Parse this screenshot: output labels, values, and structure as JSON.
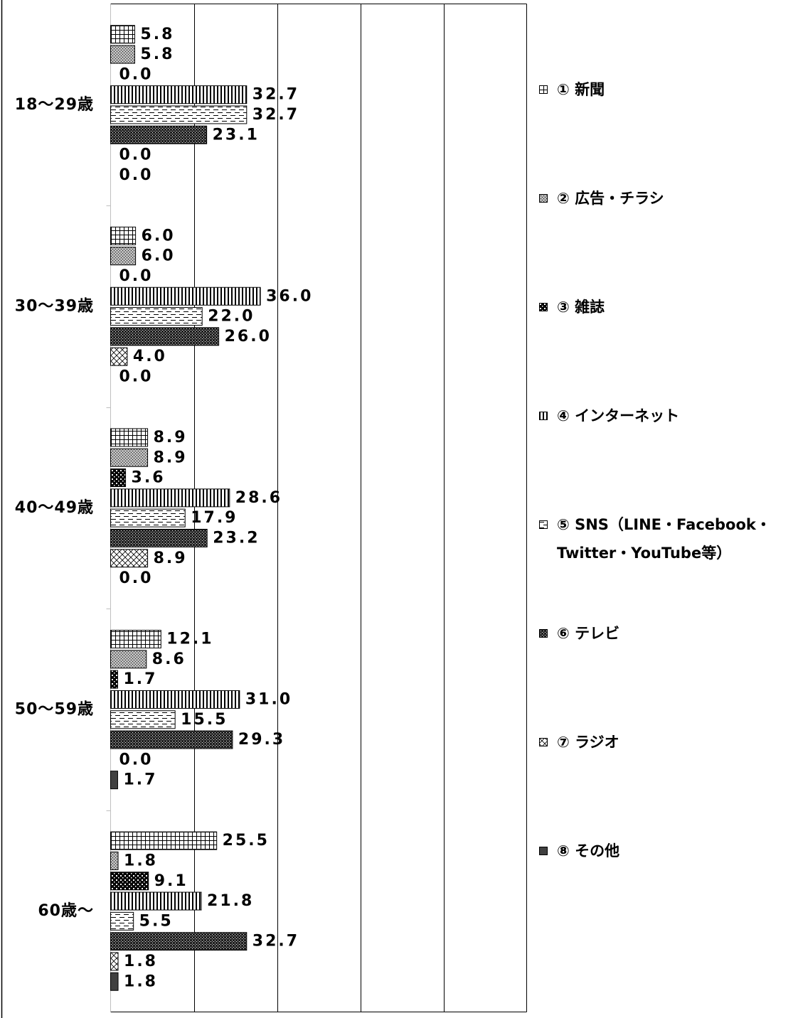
{
  "chart_data": {
    "type": "bar",
    "orientation": "horizontal",
    "categories": [
      "18～29歳",
      "30～39歳",
      "40～49歳",
      "50～59歳",
      "60歳～"
    ],
    "series": [
      {
        "name": "① 新聞",
        "values": [
          5.8,
          6.0,
          8.9,
          12.1,
          25.5
        ],
        "pattern": "small-grid"
      },
      {
        "name": "② 広告・チラシ",
        "values": [
          5.8,
          6.0,
          8.9,
          8.6,
          1.8
        ],
        "pattern": "gray-stipple"
      },
      {
        "name": "③ 雑誌",
        "values": [
          0.0,
          0.0,
          3.6,
          1.7,
          9.1
        ],
        "pattern": "black-with-white-dots"
      },
      {
        "name": "④ インターネット",
        "values": [
          32.7,
          36.0,
          28.6,
          31.0,
          21.8
        ],
        "pattern": "vertical-stripes"
      },
      {
        "name": "⑤ SNS（LINE・Facebook・Twitter・YouTube等）",
        "values": [
          32.7,
          22.0,
          17.9,
          15.5,
          5.5
        ],
        "pattern": "horizontal-dashes"
      },
      {
        "name": "⑥ テレビ",
        "values": [
          23.1,
          26.0,
          23.2,
          29.3,
          32.7
        ],
        "pattern": "dark-checker"
      },
      {
        "name": "⑦ ラジオ",
        "values": [
          0.0,
          4.0,
          8.9,
          0.0,
          1.8
        ],
        "pattern": "diagonal-crosshatch"
      },
      {
        "name": "⑧ その他",
        "values": [
          0.0,
          0.0,
          0.0,
          1.7,
          1.8
        ],
        "pattern": "solid-dark-gray"
      }
    ],
    "xlim": [
      0,
      100
    ],
    "x_gridline_step": 20,
    "grid": true,
    "x_tick_labels_shown": false,
    "legend": "right",
    "colors": {
      "bar_outline": "#000000",
      "gridline": "#000000",
      "axis_line": "#bfbfbf",
      "text": "#000000",
      "frame": "#000000"
    }
  }
}
